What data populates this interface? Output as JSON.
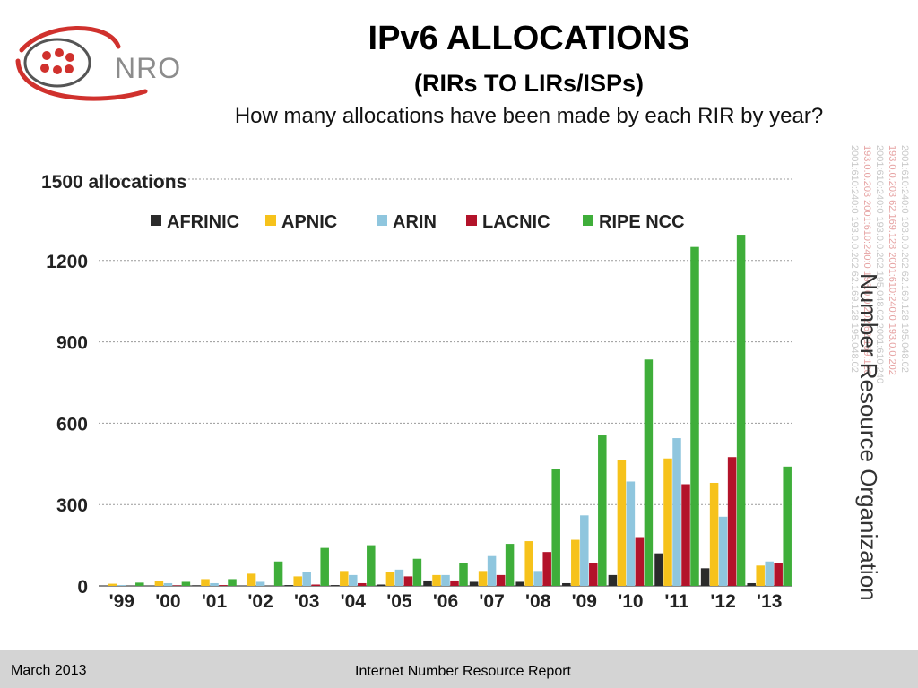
{
  "logo": {
    "text": "NRO"
  },
  "header": {
    "title": "IPv6 ALLOCATIONS",
    "subtitle": "(RIRs TO LIRs/ISPs)",
    "question": "How many allocations have been made by each RIR by year?"
  },
  "side": {
    "org_name": "Number Resource Organization",
    "address_lines": [
      "2001:610:240:0 193.0.0.202 62.169.128 195.048.02",
      "193.0.0.203 2001:610:240:0 193.0.0.202 62.169.128",
      "2001:610:240:0 193.0.0.202 195.048.02 2001:610:240",
      "193.0.0.203 62.169.128 2001:610:240:0 193.0.0.202",
      "2001:610:240:0 193.0.0.202 62.169.128 195.048.02"
    ]
  },
  "footer": {
    "date": "March 2013",
    "report": "Internet Number Resource Report"
  },
  "colors": {
    "AFRINIC": "#2b2b2b",
    "APNIC": "#f6c21b",
    "ARIN": "#8fc6de",
    "LACNIC": "#b3132a",
    "RIPE NCC": "#3fae3a",
    "logo_red": "#d0312d",
    "footer_bg": "#d4d4d4"
  },
  "chart_data": {
    "type": "bar",
    "title": "",
    "ylabel": "1500 allocations",
    "xlabel": "",
    "ylim": [
      0,
      1500
    ],
    "yticks": [
      "0",
      "300",
      "600",
      "900",
      "1200"
    ],
    "grid": true,
    "legend_position": "top",
    "categories": [
      "'99",
      "'00",
      "'01",
      "'02",
      "'03",
      "'04",
      "'05",
      "'06",
      "'07",
      "'08",
      "'09",
      "'10",
      "'11",
      "'12",
      "'13"
    ],
    "series": [
      {
        "name": "AFRINIC",
        "values": [
          0,
          0,
          2,
          0,
          3,
          3,
          5,
          20,
          15,
          15,
          10,
          40,
          120,
          65,
          10
        ]
      },
      {
        "name": "APNIC",
        "values": [
          8,
          18,
          25,
          45,
          35,
          55,
          50,
          40,
          55,
          165,
          170,
          465,
          470,
          380,
          75
        ]
      },
      {
        "name": "ARIN",
        "values": [
          3,
          10,
          10,
          15,
          50,
          40,
          60,
          40,
          110,
          55,
          260,
          385,
          545,
          255,
          90
        ]
      },
      {
        "name": "LACNIC",
        "values": [
          0,
          2,
          3,
          0,
          5,
          10,
          35,
          20,
          40,
          125,
          85,
          180,
          375,
          475,
          85
        ]
      },
      {
        "name": "RIPE NCC",
        "values": [
          12,
          15,
          25,
          90,
          140,
          150,
          100,
          85,
          155,
          430,
          555,
          835,
          1250,
          1295,
          440
        ]
      }
    ]
  }
}
